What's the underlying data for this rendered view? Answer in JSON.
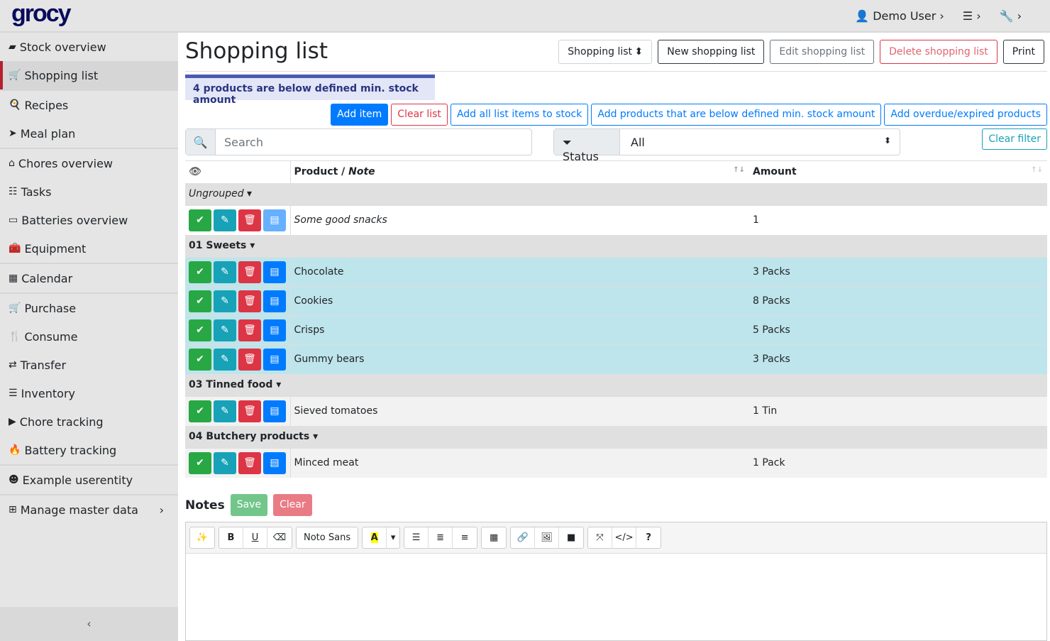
{
  "brand": "grocy",
  "topbar": {
    "user": "Demo User"
  },
  "sidebar": {
    "items": [
      {
        "label": "Stock overview",
        "icon": "box-icon",
        "g": 0
      },
      {
        "label": "Shopping list",
        "icon": "cart-icon",
        "g": 0,
        "active": true
      },
      {
        "label": "Recipes",
        "icon": "pan-icon",
        "g": 1
      },
      {
        "label": "Meal plan",
        "icon": "paper-plane-icon",
        "g": 1
      },
      {
        "label": "Chores overview",
        "icon": "home-icon",
        "g": 2
      },
      {
        "label": "Tasks",
        "icon": "tasks-icon",
        "g": 2
      },
      {
        "label": "Batteries overview",
        "icon": "battery-icon",
        "g": 2
      },
      {
        "label": "Equipment",
        "icon": "toolbox-icon",
        "g": 2
      },
      {
        "label": "Calendar",
        "icon": "calendar-icon",
        "g": 3
      },
      {
        "label": "Purchase",
        "icon": "cart-icon",
        "g": 4
      },
      {
        "label": "Consume",
        "icon": "utensils-icon",
        "g": 4
      },
      {
        "label": "Transfer",
        "icon": "exchange-icon",
        "g": 4
      },
      {
        "label": "Inventory",
        "icon": "list-icon",
        "g": 4
      },
      {
        "label": "Chore tracking",
        "icon": "play-icon",
        "g": 4
      },
      {
        "label": "Battery tracking",
        "icon": "fire-icon",
        "g": 4
      },
      {
        "label": "Example userentity",
        "icon": "smile-icon",
        "g": 5
      },
      {
        "label": "Manage master data",
        "icon": "table-icon",
        "g": 6
      }
    ]
  },
  "page": {
    "title": "Shopping list",
    "list_select": "Shopping list",
    "new": "New shopping list",
    "edit": "Edit shopping list",
    "delete": "Delete shopping list",
    "print": "Print"
  },
  "alert": "4 products are below defined min. stock amount",
  "actions": {
    "add_item": "Add item",
    "clear_list": "Clear list",
    "add_all": "Add all list items to stock",
    "add_below": "Add products that are below defined min. stock amount",
    "add_overdue": "Add overdue/expired products"
  },
  "filter": {
    "search_placeholder": "Search",
    "status_label": "Status",
    "status_value": "All",
    "clear": "Clear filter"
  },
  "table": {
    "col_product": "Product / ",
    "col_note": "Note",
    "col_amount": "Amount",
    "groups": [
      {
        "name": "Ungrouped",
        "italic": true,
        "rows": [
          {
            "product": "Some good snacks",
            "amount": "1",
            "note": true
          }
        ]
      },
      {
        "name": "01 Sweets",
        "rows": [
          {
            "product": "Chocolate",
            "amount": "3 Packs",
            "below": true
          },
          {
            "product": "Cookies",
            "amount": "8 Packs",
            "below": true
          },
          {
            "product": "Crisps",
            "amount": "5 Packs",
            "below": true
          },
          {
            "product": "Gummy bears",
            "amount": "3 Packs",
            "below": true
          }
        ]
      },
      {
        "name": "03 Tinned food",
        "rows": [
          {
            "product": "Sieved tomatoes",
            "amount": "1 Tin"
          }
        ]
      },
      {
        "name": "04 Butchery products",
        "rows": [
          {
            "product": "Minced meat",
            "amount": "1 Pack"
          }
        ]
      }
    ]
  },
  "notes": {
    "title": "Notes",
    "save": "Save",
    "clear": "Clear",
    "font": "Noto Sans"
  },
  "colors": {
    "success": "#28a745",
    "info": "#17a2b8",
    "danger": "#dc3545",
    "primary": "#007bff",
    "highlight": "#bee5eb"
  }
}
